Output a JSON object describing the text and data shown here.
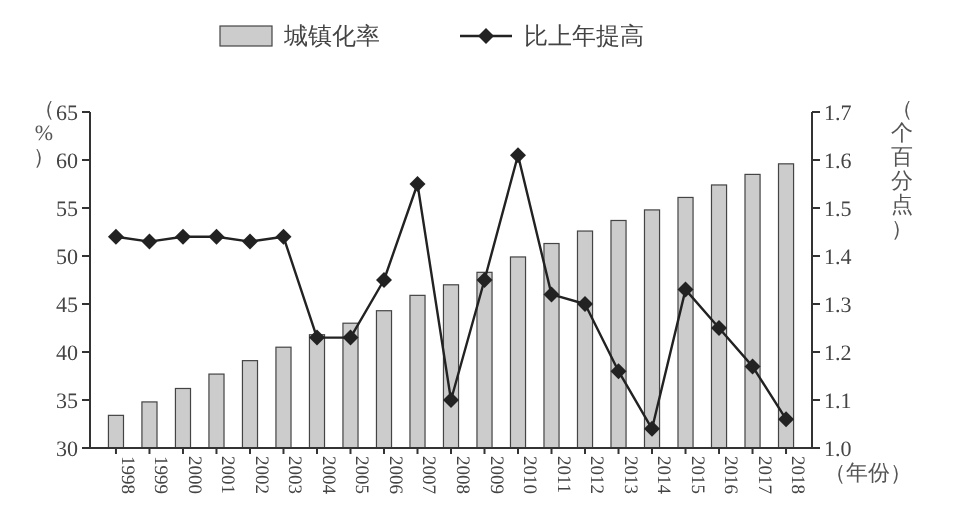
{
  "chart_data": {
    "type": "bar",
    "categories": [
      "1998",
      "1999",
      "2000",
      "2001",
      "2002",
      "2003",
      "2004",
      "2005",
      "2006",
      "2007",
      "2008",
      "2009",
      "2010",
      "2011",
      "2012",
      "2013",
      "2014",
      "2015",
      "2016",
      "2017",
      "2018"
    ],
    "series": [
      {
        "name": "城镇化率",
        "color": "#cccccc",
        "values": [
          33.4,
          34.8,
          36.2,
          37.7,
          39.1,
          40.5,
          41.8,
          43.0,
          44.3,
          45.9,
          47.0,
          48.3,
          49.9,
          51.3,
          52.6,
          53.7,
          54.8,
          56.1,
          57.4,
          58.5,
          59.6
        ]
      },
      {
        "name": "比上年提高",
        "type": "line",
        "axis": "y2",
        "color": "#222222",
        "marker": "diamond",
        "values": [
          1.44,
          1.43,
          1.44,
          1.44,
          1.43,
          1.44,
          1.23,
          1.23,
          1.35,
          1.55,
          1.1,
          1.35,
          1.61,
          1.32,
          1.3,
          1.16,
          1.04,
          1.33,
          1.25,
          1.17,
          1.06
        ]
      }
    ],
    "ylabel": "（%）",
    "y2label": "（个百分点）",
    "xlabel": "（年份）",
    "ylim": [
      30,
      65
    ],
    "yticks": [
      30,
      35,
      40,
      45,
      50,
      55,
      60,
      65
    ],
    "y2lim": [
      1.0,
      1.7
    ],
    "y2ticks": [
      {
        "value": 1.0,
        "label": "1.0"
      },
      1.1,
      1.2,
      1.3,
      1.4,
      1.5,
      1.6,
      1.7
    ],
    "legend": "top",
    "grid": false
  }
}
